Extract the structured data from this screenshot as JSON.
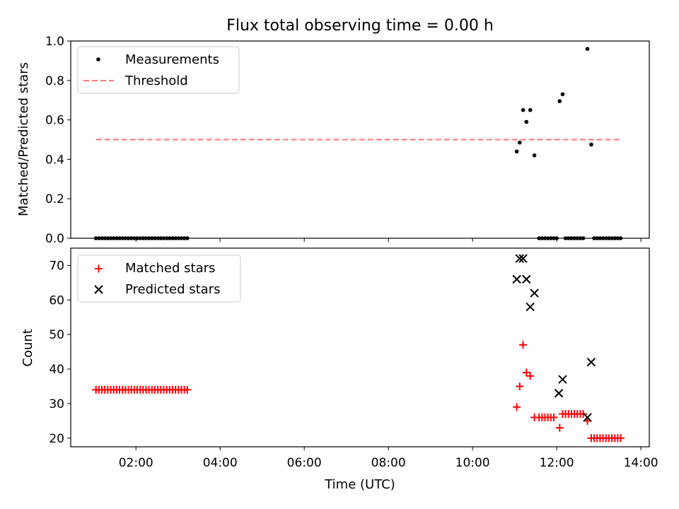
{
  "title": "Flux total observing time = 0.00 h",
  "x_axis": {
    "label": "Time (UTC)",
    "ticks": [
      {
        "value": 2,
        "label": "02:00"
      },
      {
        "value": 4,
        "label": "04:00"
      },
      {
        "value": 6,
        "label": "06:00"
      },
      {
        "value": 8,
        "label": "08:00"
      },
      {
        "value": 10,
        "label": "10:00"
      },
      {
        "value": 12,
        "label": "12:00"
      },
      {
        "value": 14,
        "label": "14:00"
      }
    ],
    "range": [
      0.45,
      14.2
    ]
  },
  "chart_data": [
    {
      "type": "scatter",
      "ylabel": "Matched/Predicted stars",
      "ylim": [
        0,
        1.0
      ],
      "yticks": [
        {
          "value": 0.0,
          "label": "0.0"
        },
        {
          "value": 0.2,
          "label": "0.2"
        },
        {
          "value": 0.4,
          "label": "0.4"
        },
        {
          "value": 0.6,
          "label": "0.6"
        },
        {
          "value": 0.8,
          "label": "0.8"
        },
        {
          "value": 1.0,
          "label": "1.0"
        }
      ],
      "legend": {
        "placement": "top-left",
        "entries": [
          "Measurements",
          "Threshold"
        ]
      },
      "series": [
        {
          "name": "Measurements",
          "marker": "dot",
          "color": "#000000",
          "x": [
            1.05,
            1.12,
            1.19,
            1.26,
            1.33,
            1.4,
            1.47,
            1.54,
            1.61,
            1.68,
            1.75,
            1.82,
            1.89,
            1.96,
            2.03,
            2.1,
            2.17,
            2.24,
            2.31,
            2.38,
            2.45,
            2.52,
            2.59,
            2.66,
            2.73,
            2.8,
            2.87,
            2.94,
            3.01,
            3.08,
            3.15,
            3.22,
            11.05,
            11.12,
            11.2,
            11.28,
            11.37,
            11.47,
            11.58,
            11.65,
            11.72,
            11.79,
            11.86,
            11.93,
            12.0,
            12.07,
            12.14,
            12.21,
            12.28,
            12.35,
            12.42,
            12.49,
            12.56,
            12.63,
            12.73,
            12.82,
            12.89,
            12.96,
            13.03,
            13.1,
            13.17,
            13.24,
            13.31,
            13.38,
            13.45,
            13.52
          ],
          "y": [
            0,
            0,
            0,
            0,
            0,
            0,
            0,
            0,
            0,
            0,
            0,
            0,
            0,
            0,
            0,
            0,
            0,
            0,
            0,
            0,
            0,
            0,
            0,
            0,
            0,
            0,
            0,
            0,
            0,
            0,
            0,
            0,
            0.44,
            0.485,
            0.65,
            0.59,
            0.65,
            0.42,
            0,
            0,
            0,
            0,
            0,
            0,
            0,
            0.695,
            0.73,
            0,
            0,
            0,
            0,
            0,
            0,
            0,
            0.96,
            0.475,
            0,
            0,
            0,
            0,
            0,
            0,
            0,
            0,
            0,
            0
          ]
        },
        {
          "name": "Threshold",
          "style": "dashed",
          "color": "#ff7777",
          "x": [
            1.05,
            13.52
          ],
          "y": [
            0.5,
            0.5
          ]
        }
      ]
    },
    {
      "type": "scatter",
      "ylabel": "Count",
      "ylim": [
        17.5,
        75
      ],
      "yticks": [
        {
          "value": 20,
          "label": "20"
        },
        {
          "value": 30,
          "label": "30"
        },
        {
          "value": 40,
          "label": "40"
        },
        {
          "value": 50,
          "label": "50"
        },
        {
          "value": 60,
          "label": "60"
        },
        {
          "value": 70,
          "label": "70"
        }
      ],
      "legend": {
        "placement": "top-left",
        "entries": [
          "Matched stars",
          "Predicted stars"
        ]
      },
      "series": [
        {
          "name": "Matched stars",
          "marker": "plus",
          "color": "#ff0000",
          "x": [
            1.05,
            1.12,
            1.19,
            1.26,
            1.33,
            1.4,
            1.47,
            1.54,
            1.61,
            1.68,
            1.75,
            1.82,
            1.89,
            1.96,
            2.03,
            2.1,
            2.17,
            2.24,
            2.31,
            2.38,
            2.45,
            2.52,
            2.59,
            2.66,
            2.73,
            2.8,
            2.87,
            2.94,
            3.01,
            3.08,
            3.15,
            3.22,
            11.05,
            11.12,
            11.2,
            11.28,
            11.37,
            11.47,
            11.58,
            11.65,
            11.72,
            11.79,
            11.86,
            11.93,
            12.07,
            12.14,
            12.21,
            12.28,
            12.35,
            12.42,
            12.49,
            12.56,
            12.63,
            12.73,
            12.82,
            12.89,
            12.96,
            13.03,
            13.1,
            13.17,
            13.24,
            13.31,
            13.38,
            13.45,
            13.52
          ],
          "y": [
            34,
            34,
            34,
            34,
            34,
            34,
            34,
            34,
            34,
            34,
            34,
            34,
            34,
            34,
            34,
            34,
            34,
            34,
            34,
            34,
            34,
            34,
            34,
            34,
            34,
            34,
            34,
            34,
            34,
            34,
            34,
            34,
            29,
            35,
            47,
            39,
            38,
            26,
            26,
            26,
            26,
            26,
            26,
            26,
            23,
            27,
            27,
            27,
            27,
            27,
            27,
            27,
            27,
            25,
            20,
            20,
            20,
            20,
            20,
            20,
            20,
            20,
            20,
            20,
            20
          ]
        },
        {
          "name": "Predicted stars",
          "marker": "x",
          "color": "#000000",
          "x": [
            11.05,
            11.12,
            11.2,
            11.28,
            11.37,
            11.47,
            12.05,
            12.14,
            12.73,
            12.82
          ],
          "y": [
            66,
            72,
            72,
            66,
            58,
            62,
            33,
            37,
            26,
            42
          ]
        }
      ]
    }
  ]
}
